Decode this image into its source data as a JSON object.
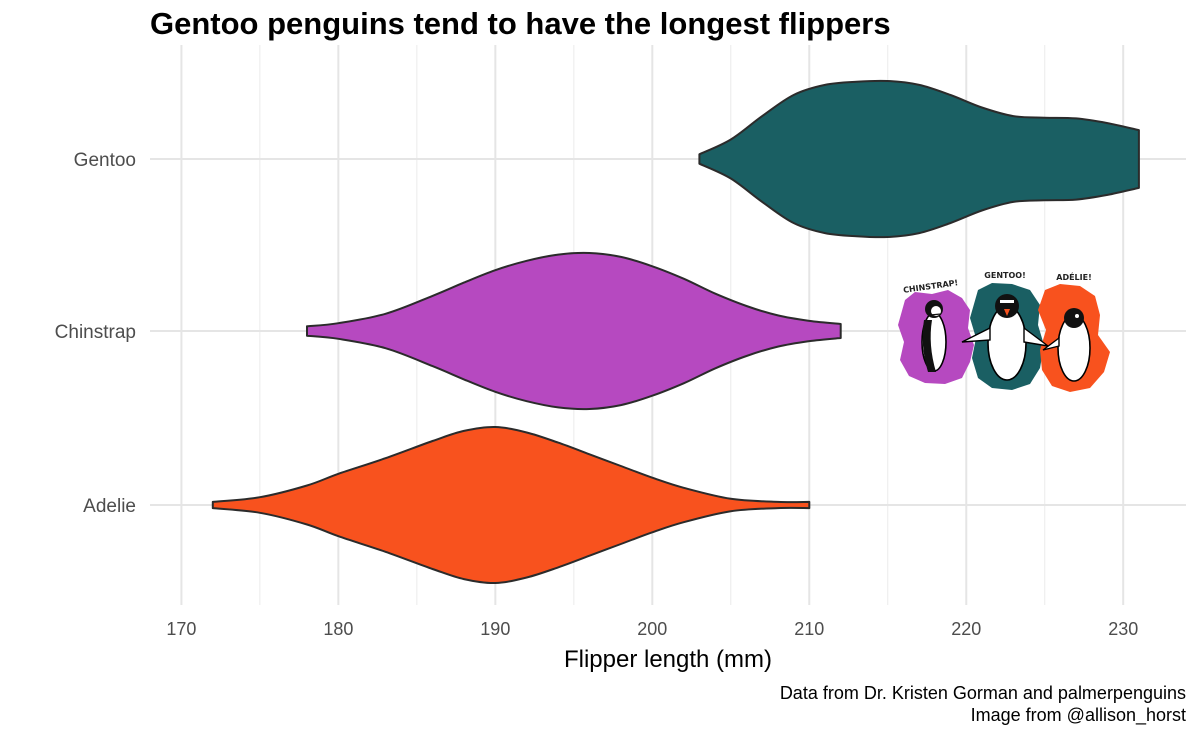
{
  "chart_data": {
    "type": "violin",
    "orientation": "horizontal",
    "title": "Gentoo penguins tend to have the longest flippers",
    "xlabel": "Flipper length (mm)",
    "ylabel": "",
    "xlim": [
      168,
      234
    ],
    "x_ticks": [
      170,
      180,
      190,
      200,
      210,
      220,
      230
    ],
    "grid": true,
    "legend": "none",
    "categories": [
      "Adelie",
      "Chinstrap",
      "Gentoo"
    ],
    "series": [
      {
        "name": "Adelie",
        "color": "#F8521E",
        "min": 172,
        "max": 210,
        "density_x": [
          172,
          175,
          178,
          180,
          183,
          186,
          188,
          190,
          192,
          194,
          196,
          198,
          200,
          202,
          205,
          208,
          210
        ],
        "density_y": [
          0.04,
          0.1,
          0.25,
          0.4,
          0.6,
          0.82,
          0.95,
          1.0,
          0.93,
          0.8,
          0.65,
          0.5,
          0.35,
          0.22,
          0.08,
          0.04,
          0.04
        ]
      },
      {
        "name": "Chinstrap",
        "color": "#B649C0",
        "min": 178,
        "max": 212,
        "density_x": [
          178,
          180,
          183,
          186,
          188,
          190,
          192,
          194,
          196,
          198,
          200,
          202,
          204,
          206,
          208,
          210,
          212
        ],
        "density_y": [
          0.06,
          0.1,
          0.22,
          0.45,
          0.62,
          0.78,
          0.9,
          0.98,
          1.0,
          0.95,
          0.83,
          0.67,
          0.48,
          0.32,
          0.2,
          0.13,
          0.09
        ]
      },
      {
        "name": "Gentoo",
        "color": "#1A5F63",
        "min": 203,
        "max": 231,
        "density_x": [
          203,
          205,
          207,
          209,
          211,
          213,
          215,
          217,
          219,
          221,
          223,
          225,
          227,
          229,
          231
        ],
        "density_y": [
          0.06,
          0.25,
          0.55,
          0.82,
          0.95,
          0.99,
          1.0,
          0.95,
          0.82,
          0.66,
          0.55,
          0.53,
          0.52,
          0.46,
          0.37
        ]
      }
    ]
  },
  "caption": {
    "line1": "Data from Dr. Kristen Gorman and palmerpenguins",
    "line2": "Image from @allison_horst"
  },
  "illustration": {
    "labels": [
      "CHINSTRAP!",
      "GENTOO!",
      "ADÉLIE!"
    ],
    "colors": [
      "#B649C0",
      "#1A5F63",
      "#F8521E"
    ]
  }
}
